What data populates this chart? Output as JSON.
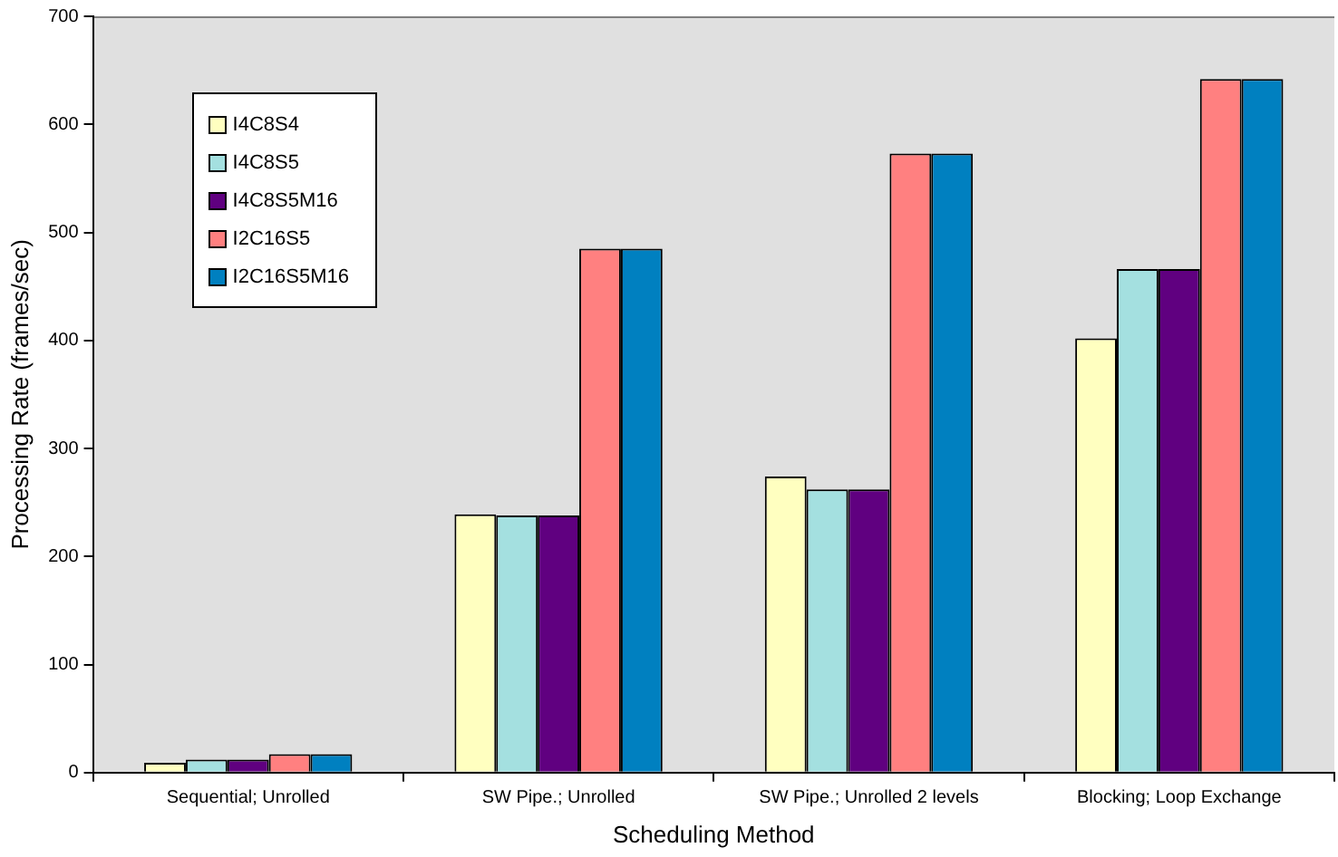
{
  "chart_data": {
    "type": "bar",
    "xlabel": "Scheduling Method",
    "ylabel": "Processing Rate (frames/sec)",
    "categories": [
      "Sequential; Unrolled",
      "SW Pipe.; Unrolled",
      "SW Pipe.; Unrolled 2 levels",
      "Blocking; Loop Exchange"
    ],
    "series": [
      {
        "name": "I4C8S4",
        "color": "#ffffc0",
        "values": [
          9,
          239,
          274,
          402
        ]
      },
      {
        "name": "I4C8S5",
        "color": "#a4e0e0",
        "values": [
          12,
          238,
          262,
          466
        ]
      },
      {
        "name": "I4C8S5M16",
        "color": "#600080",
        "values": [
          12,
          238,
          262,
          466
        ]
      },
      {
        "name": "I2C16S5",
        "color": "#ff8080",
        "values": [
          17,
          485,
          573,
          642
        ]
      },
      {
        "name": "I2C16S5M16",
        "color": "#0080c0",
        "values": [
          17,
          485,
          573,
          642
        ]
      }
    ],
    "ylim": [
      0,
      700
    ],
    "yticks": [
      0,
      100,
      200,
      300,
      400,
      500,
      600,
      700
    ],
    "grid": false,
    "legend": "top left"
  }
}
